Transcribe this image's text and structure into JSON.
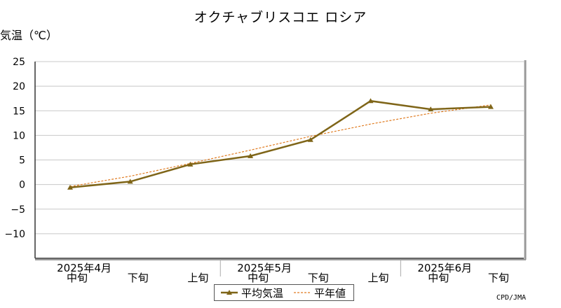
{
  "colors": {
    "series_avg": "#7f6518",
    "series_normal": "#e07b20",
    "grid": "#c8c8c8",
    "frame_shadow": "#9a9a9a"
  },
  "chart_data": {
    "type": "line",
    "title": "オクチャブリスコエ ロシア",
    "ylabel": "気温（℃）",
    "ylim": [
      -15,
      25
    ],
    "yticks": [
      25,
      20,
      15,
      10,
      5,
      0,
      -5,
      -10
    ],
    "grid": true,
    "legend_position": "bottom-center",
    "categories": [
      "中旬",
      "下旬",
      "上旬",
      "中旬",
      "下旬",
      "上旬",
      "中旬",
      "下旬"
    ],
    "months": [
      {
        "label": "2025年4月",
        "at": 0
      },
      {
        "label": "2025年5月",
        "at": 3
      },
      {
        "label": "2025年6月",
        "at": 6
      }
    ],
    "series": [
      {
        "name": "平均気温",
        "style": "solid-marker",
        "values": [
          -0.6,
          0.6,
          4.1,
          5.8,
          9.1,
          17.0,
          15.3,
          15.8
        ]
      },
      {
        "name": "平年値",
        "style": "dashed",
        "values": [
          -0.4,
          1.7,
          4.3,
          7.0,
          9.8,
          12.3,
          14.5,
          16.2
        ]
      }
    ]
  },
  "credit": "CPD/JMA"
}
